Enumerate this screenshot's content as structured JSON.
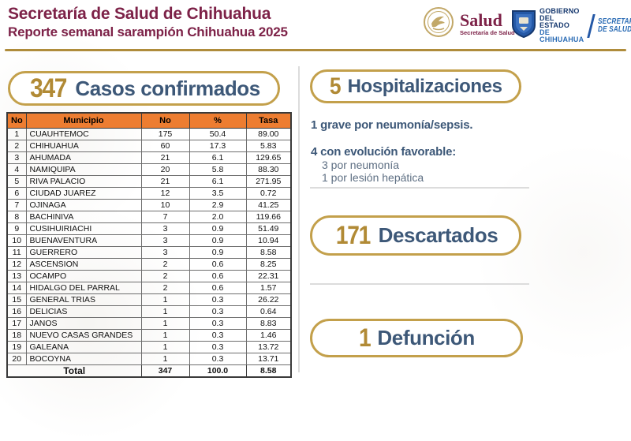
{
  "header": {
    "title": "Secretaría de Salud de Chihuahua",
    "subtitle": "Reporte semanal sarampión Chihuahua 2025",
    "logos": {
      "salud": {
        "name": "Salud",
        "sub": "Secretaría de Salud"
      },
      "gobierno": {
        "line1": "GOBIERNO",
        "line2": "DEL ESTADO",
        "line3": "DE CHIHUAHUA"
      },
      "secretaria": {
        "line1": "SECRETARÍA",
        "line2": "DE SALUD"
      }
    }
  },
  "confirmed": {
    "count": "347",
    "label": "Casos confirmados",
    "table": {
      "headers": [
        "No",
        "Municipio",
        "No",
        "%",
        "Tasa"
      ],
      "rows": [
        [
          "1",
          "CUAUHTEMOC",
          "175",
          "50.4",
          "89.00"
        ],
        [
          "2",
          "CHIHUAHUA",
          "60",
          "17.3",
          "5.83"
        ],
        [
          "3",
          "AHUMADA",
          "21",
          "6.1",
          "129.65"
        ],
        [
          "4",
          "NAMIQUIPA",
          "20",
          "5.8",
          "88.30"
        ],
        [
          "5",
          "RIVA PALACIO",
          "21",
          "6.1",
          "271.95"
        ],
        [
          "6",
          "CIUDAD JUAREZ",
          "12",
          "3.5",
          "0.72"
        ],
        [
          "7",
          "OJINAGA",
          "10",
          "2.9",
          "41.25"
        ],
        [
          "8",
          "BACHINIVA",
          "7",
          "2.0",
          "119.66"
        ],
        [
          "9",
          "CUSIHUIRIACHI",
          "3",
          "0.9",
          "51.49"
        ],
        [
          "10",
          "BUENAVENTURA",
          "3",
          "0.9",
          "10.94"
        ],
        [
          "11",
          "GUERRERO",
          "3",
          "0.9",
          "8.58"
        ],
        [
          "12",
          "ASCENSION",
          "2",
          "0.6",
          "8.25"
        ],
        [
          "13",
          "OCAMPO",
          "2",
          "0.6",
          "22.31"
        ],
        [
          "14",
          "HIDALGO DEL PARRAL",
          "2",
          "0.6",
          "1.57"
        ],
        [
          "15",
          "GENERAL TRIAS",
          "1",
          "0.3",
          "26.22"
        ],
        [
          "16",
          "DELICIAS",
          "1",
          "0.3",
          "0.64"
        ],
        [
          "17",
          "JANOS",
          "1",
          "0.3",
          "8.83"
        ],
        [
          "18",
          "NUEVO CASAS GRANDES",
          "1",
          "0.3",
          "1.46"
        ],
        [
          "19",
          "GALEANA",
          "1",
          "0.3",
          "13.72"
        ],
        [
          "20",
          "BOCOYNA",
          "1",
          "0.3",
          "13.71"
        ]
      ],
      "total": {
        "label": "Total",
        "count": "347",
        "pct": "100.0",
        "tasa": "8.58"
      }
    }
  },
  "hospitalizations": {
    "count": "5",
    "label": "Hospitalizaciones",
    "severe_line": "1 grave por neumonía/sepsis.",
    "favorable_line": "4 con evolución favorable:",
    "favorable_detail_1": "3 por neumonía",
    "favorable_detail_2": "1 por lesión hepática"
  },
  "discarded": {
    "count": "171",
    "label": "Descartados"
  },
  "deaths": {
    "count": "1",
    "label": "Defunción"
  },
  "colors": {
    "maroon": "#7D2248",
    "gold": "#B18A35",
    "gold_border": "#C3A04B",
    "blue_heading": "#3D5878",
    "table_header_orange": "#ED7D31",
    "gov_navy": "#16386E",
    "gov_blue": "#2B6CB5"
  }
}
